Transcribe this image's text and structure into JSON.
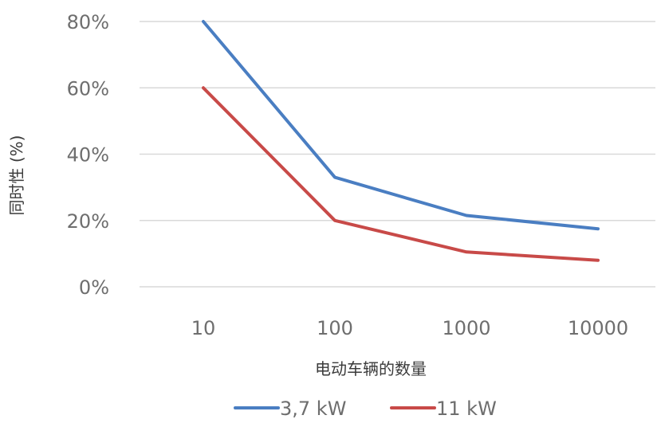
{
  "chart_data": {
    "type": "line",
    "title": "",
    "xlabel": "电动车辆的数量",
    "ylabel": "同时性 (%)",
    "categories": [
      "10",
      "100",
      "1000",
      "10000"
    ],
    "yticks": [
      "0%",
      "20%",
      "40%",
      "60%",
      "80%"
    ],
    "ylim": [
      0,
      80
    ],
    "grid": true,
    "legend_position": "bottom",
    "series": [
      {
        "name": "3,7 kW",
        "values": [
          80,
          33,
          21.5,
          17.5
        ],
        "color": "#4a7ec2"
      },
      {
        "name": "11 kW",
        "values": [
          60,
          20,
          10.5,
          8
        ],
        "color": "#c84a48"
      }
    ]
  }
}
